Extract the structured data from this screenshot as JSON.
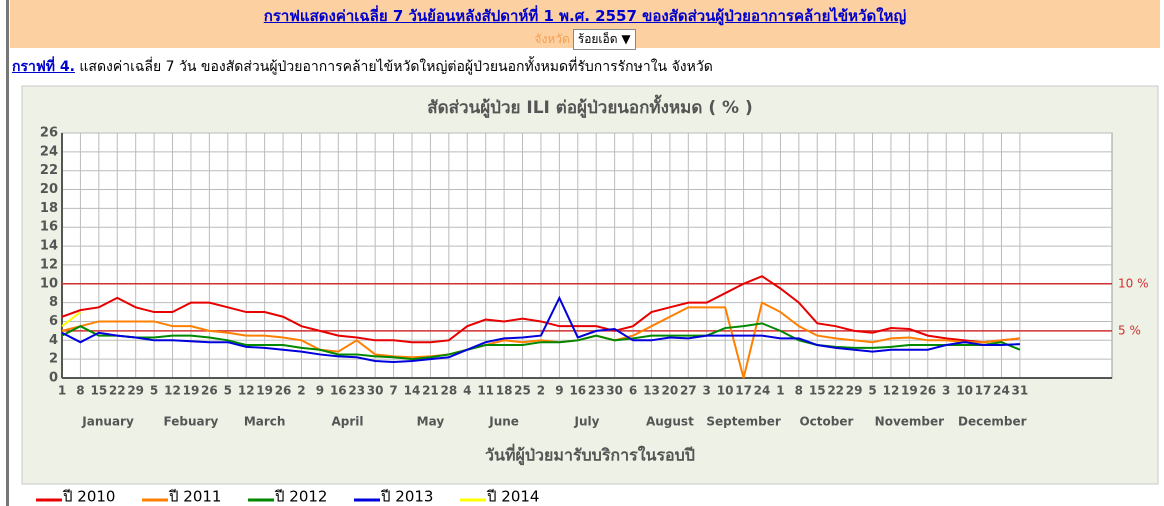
{
  "header": {
    "title": "กราฟแสดงค่าเฉลี่ย 7 วันย้อนหลังสัปดาห์ที่ 1   พ.ศ. 2557 ของสัดส่วนผู้ป่วยอาการคล้ายไข้หวัดใหญ่",
    "province_label": "จังหวัด",
    "province": "ร้อยเอ็ด ▼"
  },
  "description": {
    "link": "กราฟที่ 4.",
    "text": " แสดงค่าเฉลี่ย 7 วัน ของสัดส่วนผู้ป่วยอาการคล้ายไข้หวัดใหญ่ต่อผู้ป่วยนอกทั้งหมดที่รับการรักษาใน จังหวัด"
  },
  "chart_data": {
    "type": "line",
    "title": "สัดส่วนผู้ป่วย ILI ต่อผู้ป่วยนอกทั้งหมด ( % )",
    "x_label": "วันที่ผู้ป่วยมารับบริการในรอบปี",
    "categories": [
      1,
      8,
      15,
      22,
      29,
      5,
      12,
      19,
      26,
      5,
      12,
      19,
      26,
      2,
      9,
      16,
      23,
      30,
      7,
      14,
      21,
      28,
      4,
      11,
      18,
      25,
      2,
      9,
      16,
      23,
      30,
      6,
      13,
      20,
      27,
      3,
      10,
      17,
      24,
      1,
      8,
      15,
      22,
      29,
      5,
      12,
      19,
      26,
      3,
      10,
      17,
      24,
      31
    ],
    "months": [
      "January",
      "Febuary",
      "March",
      "April",
      "May",
      "June",
      "July",
      "August",
      "September",
      "October",
      "November",
      "December"
    ],
    "ylim": [
      0,
      26
    ],
    "yticks": [
      0,
      2,
      4,
      6,
      8,
      10,
      12,
      14,
      16,
      18,
      20,
      22,
      24,
      26
    ],
    "grid": true,
    "reference_lines": [
      {
        "value": 10,
        "label": "10 %",
        "color": "#d03030"
      },
      {
        "value": 5,
        "label": "5 %",
        "color": "#d03030"
      }
    ],
    "series": [
      {
        "name": "ปี 2010",
        "color": "#e80000",
        "values": [
          6.5,
          7.2,
          7.5,
          8.5,
          7.5,
          7,
          7,
          8,
          8,
          7.5,
          7,
          7,
          6.5,
          5.5,
          5,
          4.5,
          4.3,
          4,
          4,
          3.8,
          3.8,
          4,
          5.5,
          6.2,
          6,
          6.3,
          6,
          5.5,
          5.5,
          5.5,
          5,
          5.5,
          7,
          7.5,
          8,
          8,
          9,
          10,
          10.8,
          9.5,
          8,
          5.8,
          5.5,
          5,
          4.8,
          5.3,
          5.2,
          4.5,
          4.2,
          4,
          3.8,
          4,
          4.2
        ]
      },
      {
        "name": "ปี 2011",
        "color": "#ff8000",
        "values": [
          5,
          5.5,
          6,
          6,
          6,
          6,
          5.5,
          5.5,
          5,
          4.8,
          4.5,
          4.5,
          4.3,
          4,
          3,
          2.8,
          4,
          2.5,
          2.3,
          2.2,
          2.3,
          2.5,
          3,
          3.5,
          4,
          3.8,
          4,
          3.8,
          4,
          4.5,
          4,
          4.5,
          5.5,
          6.5,
          7.5,
          7.5,
          7.5,
          0,
          8,
          7,
          5.5,
          4.5,
          4.2,
          4,
          3.8,
          4.2,
          4.3,
          4,
          4,
          3.8,
          3.8,
          4,
          4.2
        ]
      },
      {
        "name": "ปี 2012",
        "color": "#008800",
        "values": [
          4.5,
          5.5,
          4.5,
          4.5,
          4.3,
          4.3,
          4.5,
          4.5,
          4.3,
          4,
          3.5,
          3.5,
          3.5,
          3.2,
          3,
          2.5,
          2.5,
          2.3,
          2.2,
          2,
          2.2,
          2.5,
          3,
          3.5,
          3.5,
          3.5,
          3.8,
          3.8,
          4,
          4.5,
          4,
          4.2,
          4.5,
          4.5,
          4.5,
          4.5,
          5.3,
          5.5,
          5.8,
          5,
          4,
          3.5,
          3.3,
          3.2,
          3.2,
          3.3,
          3.5,
          3.5,
          3.5,
          3.5,
          3.5,
          3.8,
          3
        ]
      },
      {
        "name": "ปี 2013",
        "color": "#0000dd",
        "values": [
          4.8,
          3.8,
          4.8,
          4.5,
          4.3,
          4,
          4,
          3.9,
          3.8,
          3.8,
          3.3,
          3.2,
          3,
          2.8,
          2.5,
          2.3,
          2.2,
          1.8,
          1.7,
          1.8,
          2,
          2.2,
          3,
          3.8,
          4.2,
          4.3,
          4.5,
          8.5,
          4.3,
          5,
          5.2,
          4,
          4,
          4.3,
          4.2,
          4.5,
          4.5,
          4.5,
          4.5,
          4.2,
          4.2,
          3.5,
          3.2,
          3,
          2.8,
          3,
          3,
          3,
          3.5,
          3.8,
          3.5,
          3.5,
          3.6
        ]
      },
      {
        "name": "ปี 2014",
        "color": "#ffff00",
        "values": [
          5.5,
          7,
          null,
          null,
          null,
          null,
          null,
          null,
          null,
          null,
          null,
          null,
          null,
          null,
          null,
          null,
          null,
          null,
          null,
          null,
          null,
          null,
          null,
          null,
          null,
          null,
          null,
          null,
          null,
          null,
          null,
          null,
          null,
          null,
          null,
          null,
          null,
          null,
          null,
          null,
          null,
          null,
          null,
          null,
          null,
          null,
          null,
          null,
          null,
          null,
          null,
          null,
          null
        ]
      }
    ]
  }
}
